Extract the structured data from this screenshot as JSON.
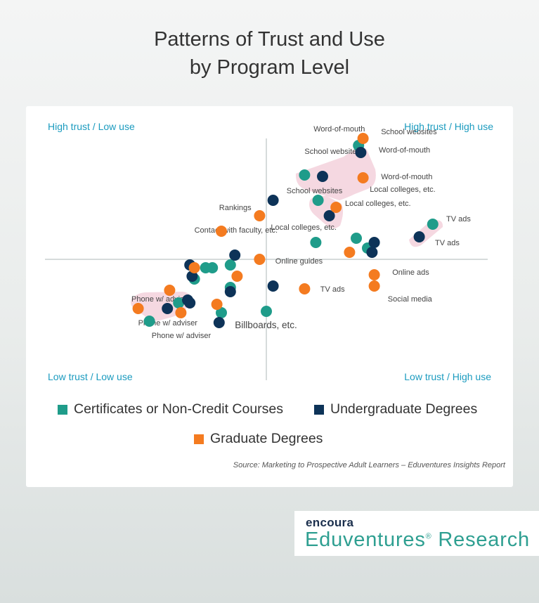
{
  "title_line1": "Patterns of Trust and Use",
  "title_line2": "by Program Level",
  "quadrants": {
    "top_left": "High trust / Low use",
    "top_right": "High trust / High use",
    "bottom_left": "Low trust / Low use",
    "bottom_right": "Low trust / High use"
  },
  "legend": {
    "cert": "Certificates or Non-Credit Courses",
    "undergrad": "Undergraduate Degrees",
    "grad": "Graduate Degrees"
  },
  "source": "Source: Marketing to Prospective Adult Learners – Eduventures Insights Report",
  "brand": {
    "top": "encoura",
    "bottom": "Eduventures",
    "reg": "®",
    "bottom_suffix": " Research"
  },
  "chart_data": {
    "type": "scatter",
    "xlabel": "",
    "ylabel": "",
    "x_axis_meaning": "use (low → high)",
    "y_axis_meaning": "trust (low → high)",
    "xlim": [
      -1,
      1
    ],
    "ylim": [
      -1,
      1
    ],
    "colors": {
      "cert": "#1f9c8a",
      "undergrad": "#0d3358",
      "grad": "#f47b20"
    },
    "series": [
      {
        "name": "Certificates or Non-Credit Courses",
        "key": "cert",
        "points": [
          {
            "x": 0.41,
            "y": 0.81
          },
          {
            "x": 0.17,
            "y": 0.6
          },
          {
            "x": 0.23,
            "y": 0.42
          },
          {
            "x": 0.74,
            "y": 0.25
          },
          {
            "x": 0.4,
            "y": 0.15
          },
          {
            "x": 0.22,
            "y": 0.12
          },
          {
            "x": 0.45,
            "y": 0.08
          },
          {
            "x": -0.16,
            "y": -0.04
          },
          {
            "x": -0.24,
            "y": -0.06
          },
          {
            "x": -0.27,
            "y": -0.06
          },
          {
            "x": -0.32,
            "y": -0.14
          },
          {
            "x": -0.16,
            "y": -0.2
          },
          {
            "x": -0.39,
            "y": -0.31
          },
          {
            "x": -0.2,
            "y": -0.38
          },
          {
            "x": 0.0,
            "y": -0.37
          },
          {
            "x": -0.52,
            "y": -0.44
          }
        ]
      },
      {
        "name": "Undergraduate Degrees",
        "key": "undergrad",
        "points": [
          {
            "x": 0.42,
            "y": 0.76
          },
          {
            "x": 0.25,
            "y": 0.59
          },
          {
            "x": 0.03,
            "y": 0.42
          },
          {
            "x": 0.28,
            "y": 0.31
          },
          {
            "x": 0.68,
            "y": 0.16
          },
          {
            "x": 0.48,
            "y": 0.12
          },
          {
            "x": 0.47,
            "y": 0.05
          },
          {
            "x": -0.14,
            "y": 0.03
          },
          {
            "x": -0.34,
            "y": -0.04
          },
          {
            "x": -0.33,
            "y": -0.12
          },
          {
            "x": 0.03,
            "y": -0.19
          },
          {
            "x": -0.16,
            "y": -0.23
          },
          {
            "x": -0.35,
            "y": -0.29
          },
          {
            "x": -0.34,
            "y": -0.31
          },
          {
            "x": -0.44,
            "y": -0.35
          },
          {
            "x": -0.21,
            "y": -0.45
          }
        ]
      },
      {
        "name": "Graduate Degrees",
        "key": "grad",
        "points": [
          {
            "x": 0.43,
            "y": 0.86
          },
          {
            "x": 0.43,
            "y": 0.58
          },
          {
            "x": 0.31,
            "y": 0.37
          },
          {
            "x": -0.03,
            "y": 0.31
          },
          {
            "x": -0.2,
            "y": 0.2
          },
          {
            "x": 0.37,
            "y": 0.05
          },
          {
            "x": -0.03,
            "y": 0.0
          },
          {
            "x": -0.32,
            "y": -0.06
          },
          {
            "x": -0.13,
            "y": -0.12
          },
          {
            "x": 0.48,
            "y": -0.11
          },
          {
            "x": 0.17,
            "y": -0.21
          },
          {
            "x": 0.48,
            "y": -0.19
          },
          {
            "x": -0.43,
            "y": -0.22
          },
          {
            "x": -0.22,
            "y": -0.32
          },
          {
            "x": -0.57,
            "y": -0.35
          },
          {
            "x": -0.38,
            "y": -0.38
          }
        ]
      }
    ],
    "annotations": [
      {
        "text": "Word-of-mouth",
        "x": 0.21,
        "y": 0.91
      },
      {
        "text": "School websites",
        "x": 0.51,
        "y": 0.89
      },
      {
        "text": "Word-of-mouth",
        "x": 0.5,
        "y": 0.76
      },
      {
        "text": "School websites",
        "x": 0.17,
        "y": 0.75
      },
      {
        "text": "Word-of-mouth",
        "x": 0.51,
        "y": 0.57
      },
      {
        "text": "Local colleges, etc.",
        "x": 0.46,
        "y": 0.48
      },
      {
        "text": "School websites",
        "x": 0.09,
        "y": 0.47
      },
      {
        "text": "Local colleges, etc.",
        "x": 0.35,
        "y": 0.38
      },
      {
        "text": "Rankings",
        "x": -0.21,
        "y": 0.35
      },
      {
        "text": "TV ads",
        "x": 0.8,
        "y": 0.27
      },
      {
        "text": "Contact with faculty, etc.",
        "x": -0.32,
        "y": 0.19
      },
      {
        "text": "Local colleges, etc.",
        "x": 0.02,
        "y": 0.21
      },
      {
        "text": "TV ads",
        "x": 0.75,
        "y": 0.1
      },
      {
        "text": "Online guides",
        "x": 0.04,
        "y": -0.03
      },
      {
        "text": "Online ads",
        "x": 0.56,
        "y": -0.11
      },
      {
        "text": "TV ads",
        "x": 0.24,
        "y": -0.23
      },
      {
        "text": "Phone w/ adviser",
        "x": -0.6,
        "y": -0.3
      },
      {
        "text": "Social media",
        "x": 0.54,
        "y": -0.3
      },
      {
        "text": "Phone w/ adviser",
        "x": -0.57,
        "y": -0.47
      },
      {
        "text": "Billboards, etc.",
        "x": -0.14,
        "y": -0.49
      },
      {
        "text": "Phone w/ adviser",
        "x": -0.51,
        "y": -0.56
      }
    ]
  }
}
